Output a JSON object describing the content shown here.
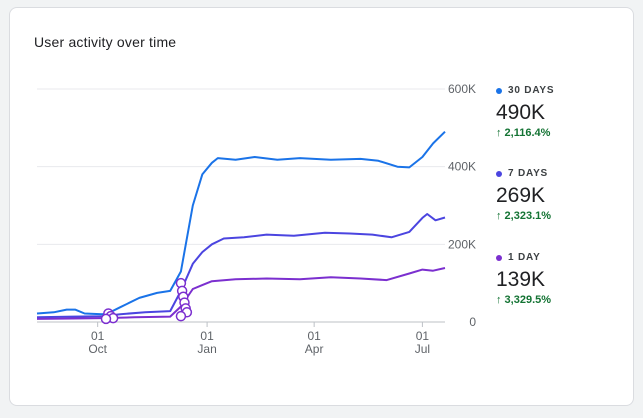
{
  "card": {
    "title": "User activity over time"
  },
  "legend": [
    {
      "label": "30 DAYS",
      "value": "490K",
      "change": "↑ 2,116.4%",
      "color": "#1a73e8"
    },
    {
      "label": "7 DAYS",
      "value": "269K",
      "change": "↑ 2,323.1%",
      "color": "#4b45e0"
    },
    {
      "label": "1 DAY",
      "value": "139K",
      "change": "↑ 3,329.5%",
      "color": "#7b2fcf"
    }
  ],
  "chart_data": {
    "type": "line",
    "title": "User activity over time",
    "x_range": [
      "2022-08-11",
      "2023-07-20"
    ],
    "x_ticks": [
      {
        "date": "2022-10-01",
        "day": "01",
        "month": "Oct"
      },
      {
        "date": "2023-01-01",
        "day": "01",
        "month": "Jan"
      },
      {
        "date": "2023-04-01",
        "day": "01",
        "month": "Apr"
      },
      {
        "date": "2023-07-01",
        "day": "01",
        "month": "Jul"
      }
    ],
    "y_ticks": [
      0,
      200000,
      400000,
      600000
    ],
    "y_tick_labels": [
      "0",
      "200K",
      "400K",
      "600K"
    ],
    "ylim": [
      0,
      600000
    ],
    "grid": true,
    "y_axis_side": "right",
    "legend_position": "right",
    "series": [
      {
        "name": "30 DAYS",
        "color": "#1a73e8",
        "points": [
          [
            "2022-08-11",
            22000
          ],
          [
            "2022-08-25",
            25000
          ],
          [
            "2022-09-05",
            32000
          ],
          [
            "2022-09-12",
            32000
          ],
          [
            "2022-09-20",
            22000
          ],
          [
            "2022-10-05",
            20000
          ],
          [
            "2022-10-10",
            23000
          ],
          [
            "2022-10-20",
            38000
          ],
          [
            "2022-11-05",
            62000
          ],
          [
            "2022-11-20",
            75000
          ],
          [
            "2022-12-01",
            80000
          ],
          [
            "2022-12-10",
            130000
          ],
          [
            "2022-12-20",
            300000
          ],
          [
            "2022-12-28",
            380000
          ],
          [
            "2023-01-05",
            410000
          ],
          [
            "2023-01-10",
            422000
          ],
          [
            "2023-01-25",
            418000
          ],
          [
            "2023-02-10",
            425000
          ],
          [
            "2023-03-01",
            418000
          ],
          [
            "2023-03-20",
            422000
          ],
          [
            "2023-04-15",
            418000
          ],
          [
            "2023-05-10",
            420000
          ],
          [
            "2023-05-25",
            415000
          ],
          [
            "2023-06-10",
            400000
          ],
          [
            "2023-06-20",
            398000
          ],
          [
            "2023-07-01",
            425000
          ],
          [
            "2023-07-10",
            460000
          ],
          [
            "2023-07-20",
            490000
          ]
        ]
      },
      {
        "name": "7 DAYS",
        "color": "#4b45e0",
        "points": [
          [
            "2022-08-11",
            12000
          ],
          [
            "2022-09-10",
            14000
          ],
          [
            "2022-10-05",
            15000
          ],
          [
            "2022-10-20",
            20000
          ],
          [
            "2022-11-10",
            25000
          ],
          [
            "2022-12-01",
            28000
          ],
          [
            "2022-12-10",
            80000
          ],
          [
            "2022-12-20",
            150000
          ],
          [
            "2022-12-28",
            180000
          ],
          [
            "2023-01-05",
            200000
          ],
          [
            "2023-01-15",
            215000
          ],
          [
            "2023-02-01",
            218000
          ],
          [
            "2023-02-20",
            225000
          ],
          [
            "2023-03-15",
            222000
          ],
          [
            "2023-04-10",
            230000
          ],
          [
            "2023-05-01",
            228000
          ],
          [
            "2023-05-20",
            225000
          ],
          [
            "2023-06-05",
            218000
          ],
          [
            "2023-06-20",
            232000
          ],
          [
            "2023-07-01",
            268000
          ],
          [
            "2023-07-05",
            278000
          ],
          [
            "2023-07-12",
            262000
          ],
          [
            "2023-07-20",
            269000
          ]
        ]
      },
      {
        "name": "1 DAY",
        "color": "#7b2fcf",
        "points": [
          [
            "2022-08-11",
            8000
          ],
          [
            "2022-09-10",
            9000
          ],
          [
            "2022-10-05",
            10000
          ],
          [
            "2022-11-01",
            12000
          ],
          [
            "2022-12-01",
            14000
          ],
          [
            "2022-12-10",
            40000
          ],
          [
            "2022-12-20",
            85000
          ],
          [
            "2022-12-28",
            95000
          ],
          [
            "2023-01-05",
            105000
          ],
          [
            "2023-01-25",
            110000
          ],
          [
            "2023-02-20",
            112000
          ],
          [
            "2023-03-20",
            110000
          ],
          [
            "2023-04-15",
            115000
          ],
          [
            "2023-05-10",
            112000
          ],
          [
            "2023-06-01",
            108000
          ],
          [
            "2023-06-20",
            125000
          ],
          [
            "2023-07-01",
            135000
          ],
          [
            "2023-07-10",
            132000
          ],
          [
            "2023-07-20",
            139000
          ]
        ]
      }
    ],
    "annotation_markers": [
      {
        "date": "2022-10-10",
        "value": 22000
      },
      {
        "date": "2022-10-12",
        "value": 15000
      },
      {
        "date": "2022-10-14",
        "value": 10000
      },
      {
        "date": "2022-10-08",
        "value": 8000
      },
      {
        "date": "2022-12-10",
        "value": 100000
      },
      {
        "date": "2022-12-11",
        "value": 80000
      },
      {
        "date": "2022-12-12",
        "value": 65000
      },
      {
        "date": "2022-12-13",
        "value": 50000
      },
      {
        "date": "2022-12-14",
        "value": 35000
      },
      {
        "date": "2022-12-15",
        "value": 25000
      },
      {
        "date": "2022-12-10",
        "value": 15000
      }
    ]
  }
}
